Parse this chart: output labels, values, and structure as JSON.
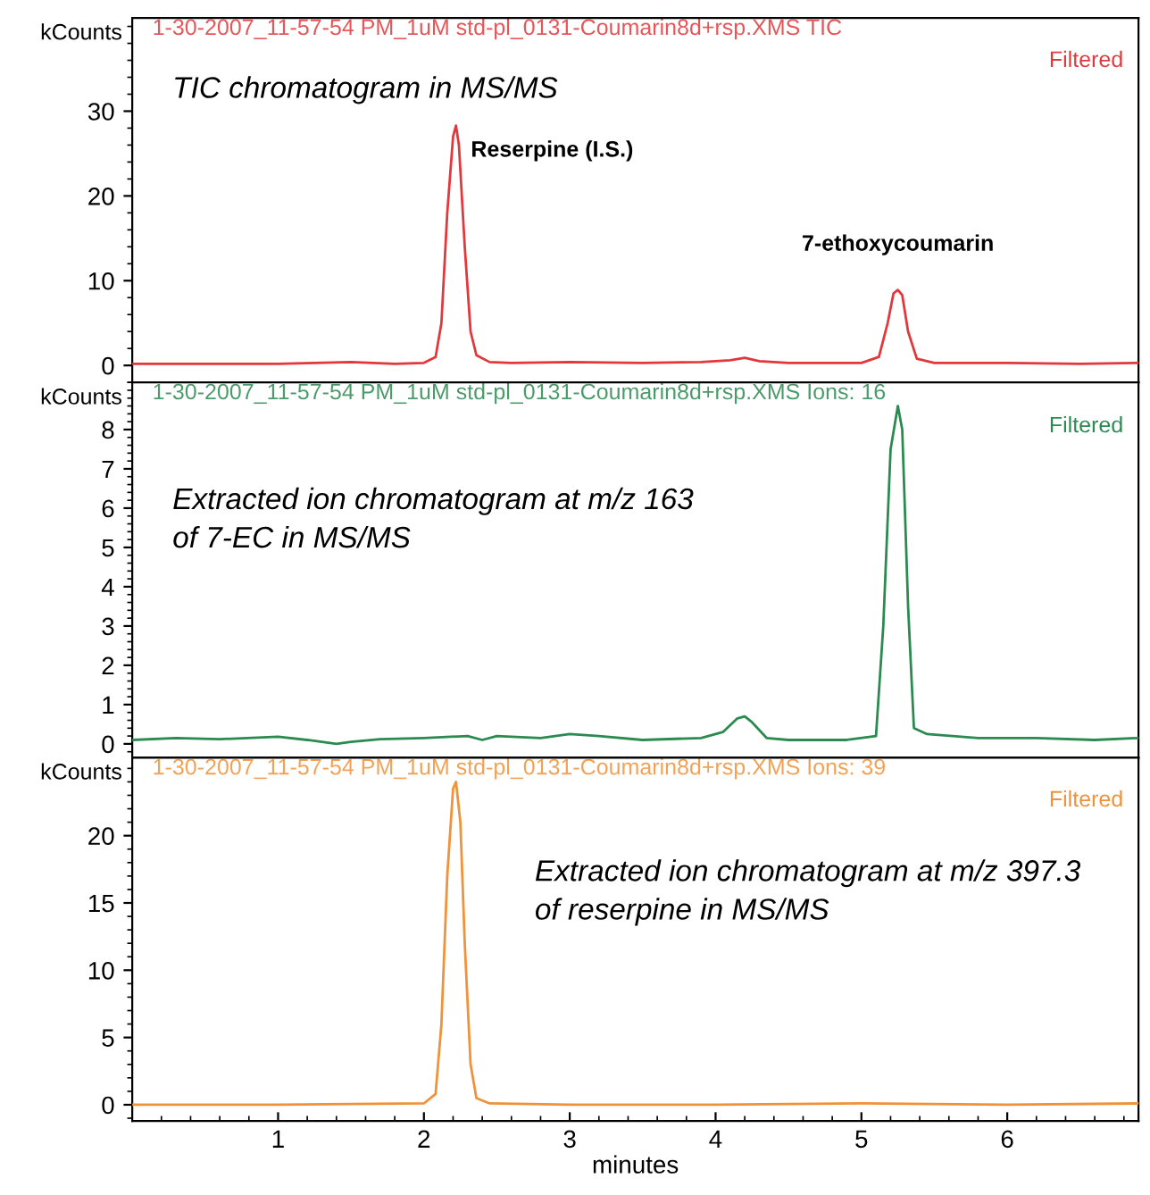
{
  "chart_data": [
    {
      "type": "line",
      "title": "1-30-2007_11-57-54 PM_1uM std-pl_0131-Coumarin8d+rsp.XMS TIC",
      "subtitle": "Filtered",
      "ylabel": "kCounts",
      "annotations": [
        "TIC chromatogram in MS/MS",
        {
          "text": "Reserpine (I.S.)",
          "x": 2.22,
          "y": 28.3
        },
        {
          "text": "7-ethoxycoumarin",
          "x": 5.25,
          "y": 8.9
        }
      ],
      "series": [
        {
          "color": "#e2383c",
          "x": [
            0.0,
            0.5,
            1.0,
            1.5,
            1.8,
            2.0,
            2.08,
            2.12,
            2.16,
            2.2,
            2.22,
            2.24,
            2.28,
            2.32,
            2.36,
            2.45,
            2.6,
            3.0,
            3.5,
            3.9,
            4.1,
            4.2,
            4.3,
            4.5,
            5.0,
            5.12,
            5.18,
            5.22,
            5.25,
            5.28,
            5.32,
            5.38,
            5.5,
            6.0,
            6.5,
            6.9
          ],
          "values": [
            0.2,
            0.2,
            0.2,
            0.4,
            0.2,
            0.3,
            1.0,
            5,
            18,
            27,
            28.3,
            26,
            14,
            4,
            1.2,
            0.4,
            0.3,
            0.4,
            0.3,
            0.4,
            0.6,
            0.9,
            0.5,
            0.3,
            0.3,
            1.0,
            5,
            8.5,
            8.9,
            8.3,
            4,
            0.8,
            0.3,
            0.3,
            0.2,
            0.3
          ]
        }
      ],
      "xlim": [
        0,
        6.9
      ],
      "ylim": [
        -2,
        41
      ],
      "yticks": [
        0,
        10,
        20,
        30
      ],
      "tick_labels": "y",
      "grid": false
    },
    {
      "type": "line",
      "title": "1-30-2007_11-57-54 PM_1uM std-pl_0131-Coumarin8d+rsp.XMS Ions: 16",
      "subtitle": "Filtered",
      "ylabel": "kCounts",
      "annotations": [
        "Extracted ion chromatogram at m/z 163\nof 7-EC in MS/MS"
      ],
      "series": [
        {
          "color": "#2b8a50",
          "x": [
            0,
            0.3,
            0.6,
            1.0,
            1.2,
            1.4,
            1.5,
            1.7,
            2.0,
            2.3,
            2.4,
            2.5,
            2.8,
            3.0,
            3.2,
            3.5,
            3.9,
            4.05,
            4.15,
            4.2,
            4.25,
            4.35,
            4.5,
            4.9,
            5.1,
            5.15,
            5.2,
            5.25,
            5.28,
            5.32,
            5.36,
            5.45,
            5.8,
            6.2,
            6.6,
            6.9
          ],
          "values": [
            0.1,
            0.15,
            0.12,
            0.18,
            0.1,
            0.0,
            0.05,
            0.12,
            0.15,
            0.2,
            0.1,
            0.2,
            0.15,
            0.25,
            0.2,
            0.1,
            0.15,
            0.3,
            0.65,
            0.7,
            0.55,
            0.15,
            0.1,
            0.1,
            0.2,
            3,
            7.5,
            8.6,
            8.0,
            3.5,
            0.4,
            0.25,
            0.15,
            0.15,
            0.1,
            0.15
          ]
        }
      ],
      "xlim": [
        0,
        6.9
      ],
      "ylim": [
        -0.35,
        9.2
      ],
      "yticks": [
        0,
        1,
        2,
        3,
        4,
        5,
        6,
        7,
        8
      ],
      "tick_labels": "y",
      "grid": false
    },
    {
      "type": "line",
      "title": "1-30-2007_11-57-54 PM_1uM std-pl_0131-Coumarin8d+rsp.XMS Ions: 39",
      "subtitle": "Filtered",
      "ylabel": "kCounts",
      "xlabel": "minutes",
      "annotations": [
        "Extracted ion chromatogram at m/z 397.3\nof reserpine in MS/MS"
      ],
      "series": [
        {
          "color": "#f0923a",
          "x": [
            0,
            1,
            2.0,
            2.08,
            2.12,
            2.16,
            2.2,
            2.22,
            2.25,
            2.28,
            2.32,
            2.36,
            2.45,
            3,
            4,
            5,
            6,
            6.9
          ],
          "values": [
            0,
            0,
            0.1,
            0.8,
            6,
            17,
            23.5,
            24,
            21,
            12,
            3,
            0.5,
            0.1,
            0,
            0,
            0.1,
            0,
            0.1
          ]
        }
      ],
      "xlim": [
        0,
        6.9
      ],
      "ylim": [
        -1.2,
        25.8
      ],
      "xticks": [
        1,
        2,
        3,
        4,
        5,
        6
      ],
      "yticks": [
        0,
        5,
        10,
        15,
        20
      ],
      "grid": false
    }
  ]
}
